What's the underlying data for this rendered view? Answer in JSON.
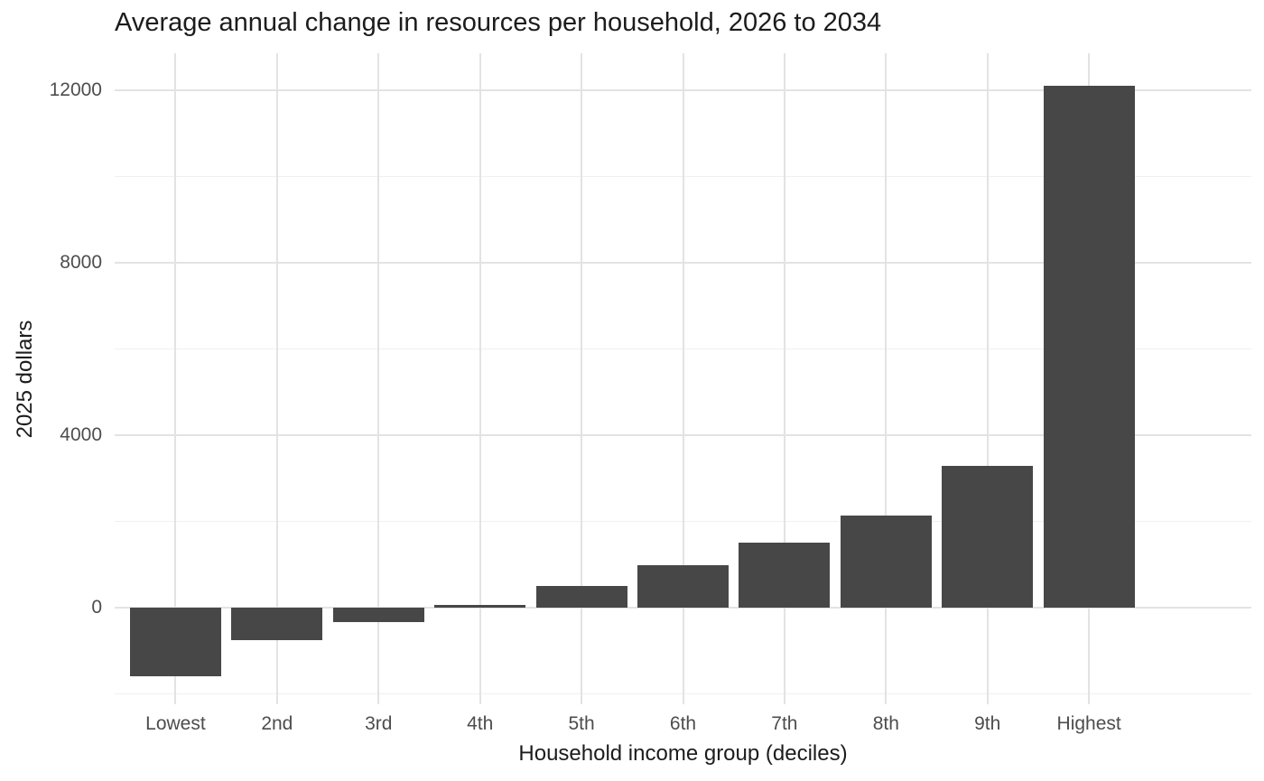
{
  "chart_data": {
    "type": "bar",
    "title": "Average annual change in resources per household, 2026 to 2034",
    "xlabel": "Household income group (deciles)",
    "ylabel": "2025 dollars",
    "categories": [
      "Lowest",
      "2nd",
      "3rd",
      "4th",
      "5th",
      "6th",
      "7th",
      "8th",
      "9th",
      "Highest"
    ],
    "values": [
      -1600,
      -770,
      -350,
      60,
      490,
      970,
      1490,
      2120,
      3270,
      12100
    ],
    "yticks": [
      0,
      4000,
      8000,
      12000
    ],
    "ytick_labels": [
      "0",
      "4000",
      "8000",
      "12000"
    ],
    "yticks_minor": [
      -2000,
      2000,
      6000,
      10000
    ],
    "ylim": [
      -2250,
      12850
    ],
    "bar_width_fraction": 0.9,
    "x_edge_padding": 0.6,
    "legend": "none",
    "grid": true,
    "colors": {
      "bar": "#474747",
      "grid_major": "#e3e3e3",
      "grid_minor": "#f0f0f0",
      "tick_label": "#4d4d4d",
      "axis_title": "#1c1c1c",
      "background": "#ffffff"
    }
  }
}
